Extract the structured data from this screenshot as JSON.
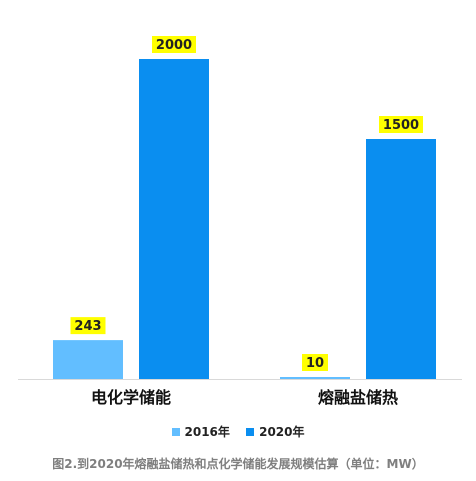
{
  "chart_data": {
    "type": "bar",
    "categories": [
      "电化学储能",
      "熔融盐储热"
    ],
    "series": [
      {
        "name": "2016年",
        "values": [
          243,
          10
        ]
      },
      {
        "name": "2020年",
        "values": [
          2000,
          1500
        ]
      }
    ],
    "ylim": [
      0,
      2000
    ],
    "grid": false,
    "legend_position": "bottom"
  },
  "colors": {
    "series_2016": "#62beff",
    "series_2020": "#0a8ef0",
    "label_highlight": "#ffff00",
    "axis": "#d9d9d9"
  },
  "caption": "图2.到2020年熔融盐储热和点化学储能发展规模估算（单位：MW）"
}
